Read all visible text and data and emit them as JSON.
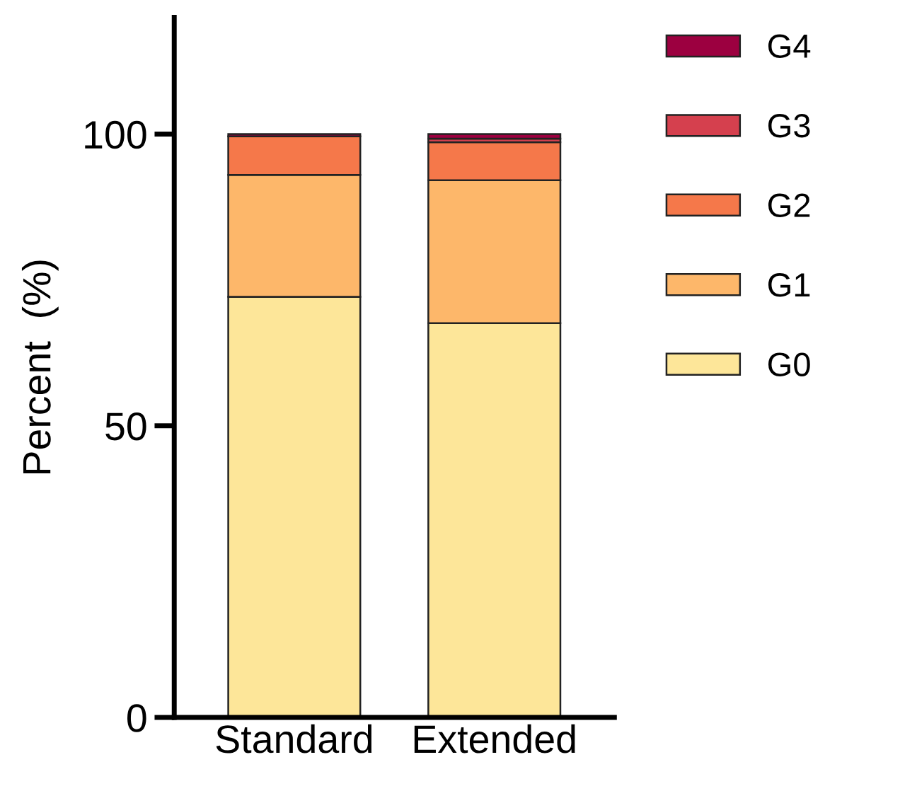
{
  "chart_data": {
    "type": "bar",
    "stacked": true,
    "ylabel": "Percent  (%)",
    "categories": [
      "Standard",
      "Extended"
    ],
    "series": [
      {
        "name": "G0",
        "color": "#fde699",
        "values": [
          72.1,
          67.6
        ]
      },
      {
        "name": "G1",
        "color": "#fdb76a",
        "values": [
          20.9,
          24.5
        ]
      },
      {
        "name": "G2",
        "color": "#f5784a",
        "values": [
          6.6,
          6.5
        ]
      },
      {
        "name": "G3",
        "color": "#d5404e",
        "values": [
          null,
          0.6
        ]
      },
      {
        "name": "G4",
        "color": "#9c0040",
        "values": [
          0.4,
          0.8
        ]
      }
    ],
    "ylim": [
      0,
      120
    ],
    "yticks": [
      0,
      50,
      100
    ],
    "grid": false,
    "legend": "top right"
  }
}
